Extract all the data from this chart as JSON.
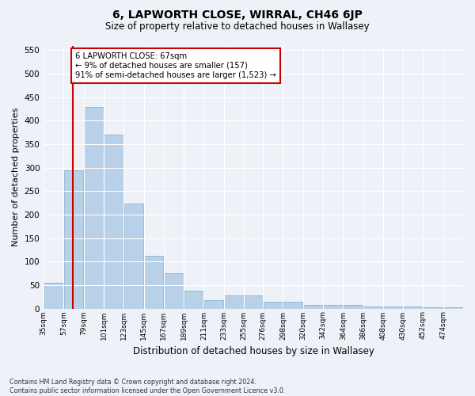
{
  "title": "6, LAPWORTH CLOSE, WIRRAL, CH46 6JP",
  "subtitle": "Size of property relative to detached houses in Wallasey",
  "xlabel": "Distribution of detached houses by size in Wallasey",
  "ylabel": "Number of detached properties",
  "footer_line1": "Contains HM Land Registry data © Crown copyright and database right 2024.",
  "footer_line2": "Contains public sector information licensed under the Open Government Licence v3.0.",
  "annotation_line1": "6 LAPWORTH CLOSE: 67sqm",
  "annotation_line2": "← 9% of detached houses are smaller (157)",
  "annotation_line3": "91% of semi-detached houses are larger (1,523) →",
  "property_size": 67,
  "bin_edges": [
    35,
    57,
    79,
    101,
    123,
    145,
    167,
    189,
    211,
    233,
    255,
    276,
    298,
    320,
    342,
    364,
    386,
    408,
    430,
    452,
    474,
    496
  ],
  "values": [
    55,
    295,
    430,
    370,
    223,
    113,
    75,
    38,
    18,
    28,
    28,
    15,
    15,
    8,
    8,
    8,
    4,
    4,
    4,
    2,
    2
  ],
  "bar_color": "#b8d0e8",
  "bar_edge_color": "#7aaac8",
  "vline_color": "#cc0000",
  "annotation_box_edge_color": "#cc0000",
  "fig_bg_color": "#eef2f8",
  "plot_bg_color": "#eef2f8",
  "grid_color": "#ffffff",
  "ylim": [
    0,
    560
  ],
  "yticks": [
    0,
    50,
    100,
    150,
    200,
    250,
    300,
    350,
    400,
    450,
    500,
    550
  ],
  "xtick_labels": [
    "35sqm",
    "57sqm",
    "79sqm",
    "101sqm",
    "123sqm",
    "145sqm",
    "167sqm",
    "189sqm",
    "211sqm",
    "233sqm",
    "255sqm",
    "276sqm",
    "298sqm",
    "320sqm",
    "342sqm",
    "364sqm",
    "386sqm",
    "408sqm",
    "430sqm",
    "452sqm",
    "474sqm"
  ]
}
